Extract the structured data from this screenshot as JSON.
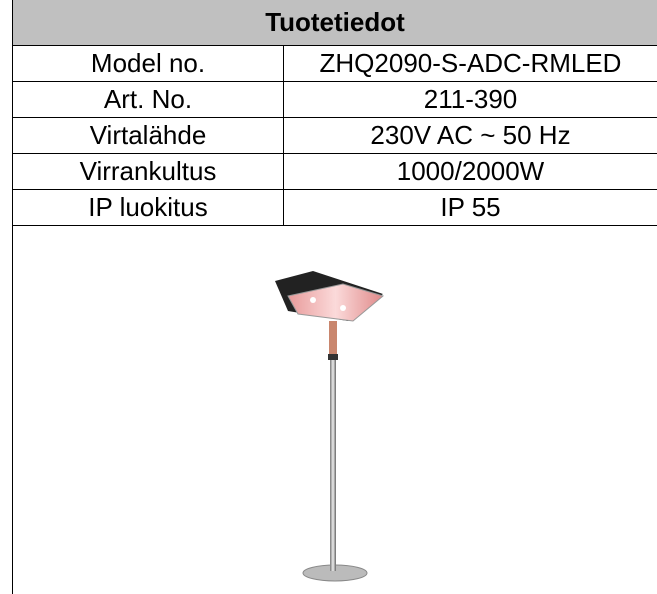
{
  "table": {
    "title": "Tuotetiedot",
    "rows": [
      [
        "Model no.",
        "ZHQ2090-S-ADC-RMLED"
      ],
      [
        "Art. No.",
        "211-390"
      ],
      [
        "Virtalähde",
        "230V AC ~ 50 Hz"
      ],
      [
        "Virrankultus",
        "1000/2000W"
      ],
      [
        "IP luokitus",
        "IP 55"
      ]
    ]
  }
}
